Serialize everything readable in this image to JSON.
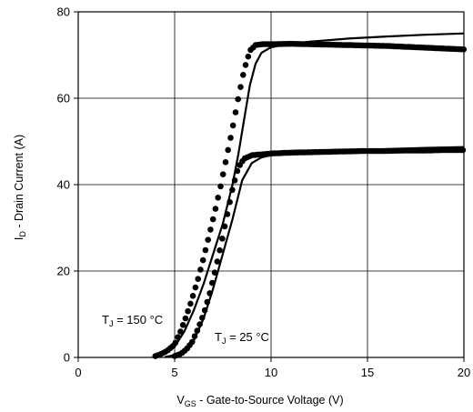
{
  "chart_data": {
    "type": "scatter",
    "x_axis": {
      "label_main": "V",
      "label_sub": "GS",
      "label_rest": " - Gate-to-Source Voltage (V)",
      "range": [
        0,
        20
      ],
      "ticks": [
        0,
        5,
        10,
        15,
        20
      ],
      "tick_labels": [
        "0",
        "5",
        "10",
        "15",
        "20"
      ]
    },
    "y_axis": {
      "label_main": "I",
      "label_sub": "D",
      "label_rest": " - Drain Current  (A)",
      "range": [
        0,
        80
      ],
      "ticks": [
        0,
        20,
        40,
        60,
        80
      ],
      "tick_labels": [
        "0",
        "20",
        "40",
        "60",
        "80"
      ]
    },
    "grid": true,
    "annotations": [
      {
        "id": "tj150",
        "main": "T",
        "sub": "J",
        "rest": " = 150 °C"
      },
      {
        "id": "tj25",
        "main": "T",
        "sub": "J",
        "rest": " = 25 °C"
      }
    ],
    "series": [
      {
        "id": "tj150-measured",
        "style": "dots",
        "x": [
          4.0,
          4.3,
          4.6,
          5.0,
          5.3,
          5.6,
          5.9,
          6.2,
          6.5,
          6.8,
          7.1,
          7.4,
          7.7,
          8.0,
          8.3,
          8.6,
          8.9,
          9.2,
          9.5,
          10,
          11,
          12,
          13,
          14,
          15,
          16,
          17,
          18,
          19,
          20
        ],
        "y": [
          0.3,
          0.8,
          1.5,
          3,
          6,
          9.5,
          13.5,
          18,
          23,
          28.5,
          34,
          40,
          46.5,
          53,
          60,
          66.5,
          71,
          72.3,
          72.5,
          72.5,
          72.6,
          72.5,
          72.4,
          72.3,
          72.2,
          72.1,
          71.9,
          71.7,
          71.5,
          71.3
        ]
      },
      {
        "id": "tj25-measured",
        "style": "dots",
        "x": [
          5.0,
          5.3,
          5.6,
          5.9,
          6.2,
          6.5,
          6.8,
          7.1,
          7.4,
          7.7,
          8.0,
          8.3,
          8.6,
          9.0,
          9.5,
          10,
          11,
          12,
          13,
          14,
          15,
          16,
          17,
          18,
          19,
          20
        ],
        "y": [
          0.3,
          0.8,
          1.8,
          3.5,
          6.5,
          10,
          14.5,
          20,
          26,
          32.5,
          39,
          44,
          46,
          46.8,
          47,
          47.2,
          47.4,
          47.5,
          47.6,
          47.7,
          47.8,
          47.8,
          47.9,
          47.9,
          48,
          48
        ]
      },
      {
        "id": "tj150-model",
        "style": "line",
        "x": [
          4.0,
          4.5,
          5.0,
          5.5,
          6.0,
          6.5,
          7.0,
          7.5,
          8.0,
          8.3,
          8.6,
          8.9,
          9.2,
          9.5,
          10,
          11,
          12,
          14,
          16,
          18,
          20
        ],
        "y": [
          0.2,
          0.8,
          2.5,
          6,
          11,
          17,
          24,
          31,
          40,
          47,
          55,
          63,
          68,
          70.5,
          71.8,
          72.6,
          73.1,
          73.8,
          74.3,
          74.7,
          75.0
        ]
      },
      {
        "id": "tj25-model",
        "style": "line",
        "x": [
          4.5,
          5.0,
          5.5,
          6.0,
          6.5,
          7.0,
          7.5,
          8.0,
          8.5,
          9.0,
          9.5,
          10,
          11,
          12,
          14,
          16,
          18,
          20
        ],
        "y": [
          0.1,
          0.5,
          1.5,
          4,
          9,
          16,
          24,
          32,
          41,
          45,
          46.3,
          46.8,
          47.2,
          47.5,
          47.9,
          48.2,
          48.5,
          48.7
        ]
      }
    ]
  }
}
